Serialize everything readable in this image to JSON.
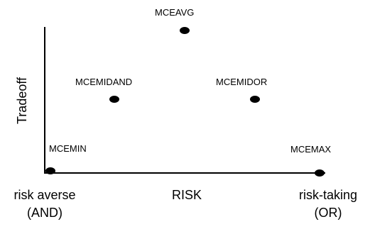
{
  "y_axis_label": "Tradeoff",
  "x_axis_label": "RISK",
  "x_left_label_line1": "risk averse",
  "x_left_label_line2": "(AND)",
  "x_right_label_line1": "risk-taking",
  "x_right_label_line2": "(OR)",
  "points": [
    {
      "label": "MCEMIN"
    },
    {
      "label": "MCEMIDAND"
    },
    {
      "label": "MCEAVG"
    },
    {
      "label": "MCEMIDOR"
    },
    {
      "label": "MCEMAX"
    }
  ],
  "colors": {
    "ink": "#000000",
    "background": "#ffffff"
  }
}
